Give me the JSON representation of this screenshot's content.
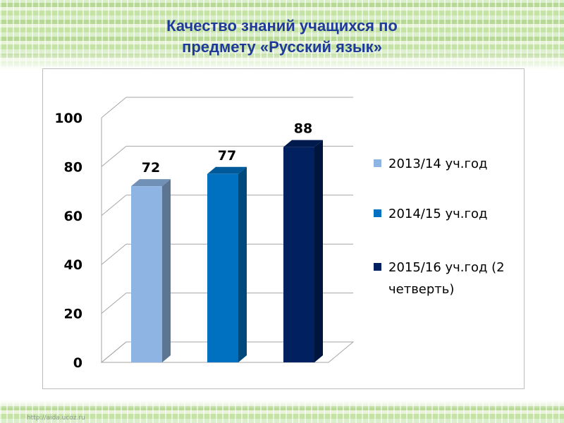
{
  "title_lines": [
    "Качество знаний учащихся по",
    "предмету «Русский язык»"
  ],
  "watermark": "http://aida.ucoz.ru",
  "chart_data": {
    "type": "bar",
    "title": "Качество знаний учащихся по предмету «Русский язык»",
    "categories": [
      "2013/14 уч.год",
      "2014/15 уч.год",
      "2015/16 уч.год (2 четверть)"
    ],
    "values": [
      72,
      77,
      88
    ],
    "data_labels": [
      "72",
      "77",
      "88"
    ],
    "colors": [
      "#8db4e2",
      "#0070c0",
      "#002060"
    ],
    "ylim": [
      0,
      100
    ],
    "yticks": [
      "0",
      "20",
      "40",
      "60",
      "80",
      "100"
    ],
    "grid": true,
    "legend_position": "right",
    "legend": [
      {
        "lines": [
          "2013/14 уч.год"
        ],
        "color": "#8db4e2"
      },
      {
        "lines": [
          "2014/15 уч.год"
        ],
        "color": "#0070c0"
      },
      {
        "lines": [
          "2015/16 уч.год (2",
          "четверть)"
        ],
        "color": "#002060"
      }
    ]
  }
}
